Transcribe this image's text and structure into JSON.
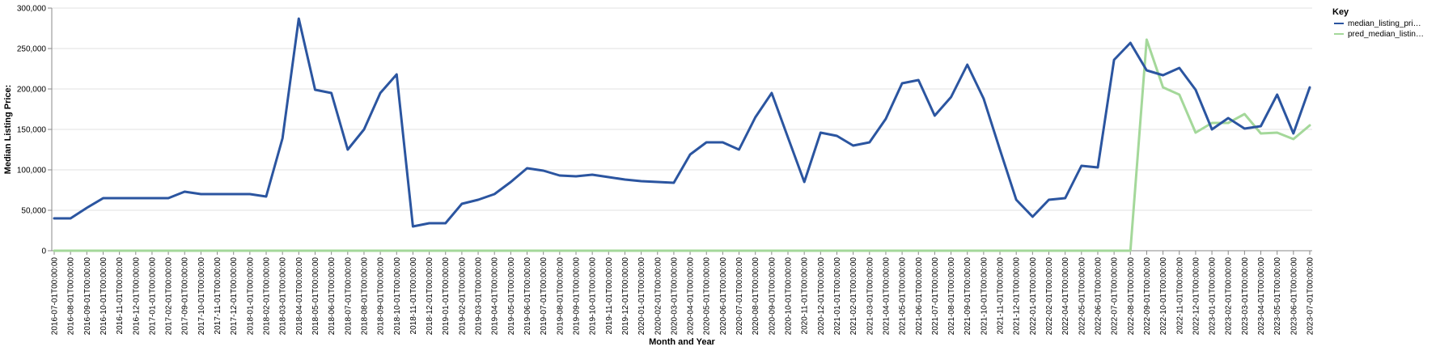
{
  "chart_data": {
    "type": "line",
    "xlabel": "Month and Year",
    "ylabel": "Median Listing Price:",
    "ylim": [
      0,
      300000
    ],
    "yticks": [
      0,
      50000,
      100000,
      150000,
      200000,
      250000,
      300000
    ],
    "ytick_labels": [
      "0",
      "50,000",
      "100,000",
      "150,000",
      "200,000",
      "250,000",
      "300,000"
    ],
    "grid": true,
    "legend": {
      "title": "Key",
      "position": "top-right"
    },
    "x": [
      "2016-07-01T00:00:00",
      "2016-08-01T00:00:00",
      "2016-09-01T00:00:00",
      "2016-10-01T00:00:00",
      "2016-11-01T00:00:00",
      "2016-12-01T00:00:00",
      "2017-01-01T00:00:00",
      "2017-02-01T00:00:00",
      "2017-09-01T00:00:00",
      "2017-10-01T00:00:00",
      "2017-11-01T00:00:00",
      "2017-12-01T00:00:00",
      "2018-01-01T00:00:00",
      "2018-02-01T00:00:00",
      "2018-03-01T00:00:00",
      "2018-04-01T00:00:00",
      "2018-05-01T00:00:00",
      "2018-06-01T00:00:00",
      "2018-07-01T00:00:00",
      "2018-08-01T00:00:00",
      "2018-09-01T00:00:00",
      "2018-10-01T00:00:00",
      "2018-11-01T00:00:00",
      "2018-12-01T00:00:00",
      "2019-01-01T00:00:00",
      "2019-02-01T00:00:00",
      "2019-03-01T00:00:00",
      "2019-04-01T00:00:00",
      "2019-05-01T00:00:00",
      "2019-06-01T00:00:00",
      "2019-07-01T00:00:00",
      "2019-08-01T00:00:00",
      "2019-09-01T00:00:00",
      "2019-10-01T00:00:00",
      "2019-11-01T00:00:00",
      "2019-12-01T00:00:00",
      "2020-01-01T00:00:00",
      "2020-02-01T00:00:00",
      "2020-03-01T00:00:00",
      "2020-04-01T00:00:00",
      "2020-05-01T00:00:00",
      "2020-06-01T00:00:00",
      "2020-07-01T00:00:00",
      "2020-08-01T00:00:00",
      "2020-09-01T00:00:00",
      "2020-10-01T00:00:00",
      "2020-11-01T00:00:00",
      "2020-12-01T00:00:00",
      "2021-01-01T00:00:00",
      "2021-02-01T00:00:00",
      "2021-03-01T00:00:00",
      "2021-04-01T00:00:00",
      "2021-05-01T00:00:00",
      "2021-06-01T00:00:00",
      "2021-07-01T00:00:00",
      "2021-08-01T00:00:00",
      "2021-09-01T00:00:00",
      "2021-10-01T00:00:00",
      "2021-11-01T00:00:00",
      "2021-12-01T00:00:00",
      "2022-01-01T00:00:00",
      "2022-02-01T00:00:00",
      "2022-04-01T00:00:00",
      "2022-05-01T00:00:00",
      "2022-06-01T00:00:00",
      "2022-07-01T00:00:00",
      "2022-08-01T00:00:00",
      "2022-09-01T00:00:00",
      "2022-10-01T00:00:00",
      "2022-11-01T00:00:00",
      "2022-12-01T00:00:00",
      "2023-01-01T00:00:00",
      "2023-02-01T00:00:00",
      "2023-03-01T00:00:00",
      "2023-04-01T00:00:00",
      "2023-05-01T00:00:00",
      "2023-06-01T00:00:00",
      "2023-07-01T00:00:00"
    ],
    "series": [
      {
        "name": "median_listing_pri…",
        "color": "#2b55a0",
        "values": [
          40000,
          40000,
          53000,
          65000,
          65000,
          65000,
          65000,
          65000,
          73000,
          70000,
          70000,
          70000,
          70000,
          67000,
          139000,
          287000,
          199000,
          195000,
          125000,
          150000,
          195000,
          218000,
          30000,
          34000,
          34000,
          58000,
          63000,
          70000,
          85000,
          102000,
          99000,
          93000,
          92000,
          94000,
          91000,
          88000,
          86000,
          85000,
          84000,
          119000,
          134000,
          134000,
          125000,
          165000,
          195000,
          140000,
          85000,
          146000,
          142000,
          130000,
          134000,
          163000,
          207000,
          211000,
          167000,
          190000,
          230000,
          188000,
          125000,
          63000,
          42000,
          63000,
          65000,
          105000,
          103000,
          236000,
          257000,
          223000,
          217000,
          226000,
          199000,
          150000,
          164000,
          151000,
          154000,
          193000,
          145000,
          202000
        ]
      },
      {
        "name": "pred_median_listin…",
        "color": "#a4d89a",
        "values": [
          0,
          0,
          0,
          0,
          0,
          0,
          0,
          0,
          0,
          0,
          0,
          0,
          0,
          0,
          0,
          0,
          0,
          0,
          0,
          0,
          0,
          0,
          0,
          0,
          0,
          0,
          0,
          0,
          0,
          0,
          0,
          0,
          0,
          0,
          0,
          0,
          0,
          0,
          0,
          0,
          0,
          0,
          0,
          0,
          0,
          0,
          0,
          0,
          0,
          0,
          0,
          0,
          0,
          0,
          0,
          0,
          0,
          0,
          0,
          0,
          0,
          0,
          0,
          0,
          0,
          0,
          0,
          261000,
          202000,
          193000,
          146000,
          158000,
          158000,
          169000,
          145000,
          146000,
          138000,
          155000
        ]
      }
    ]
  }
}
